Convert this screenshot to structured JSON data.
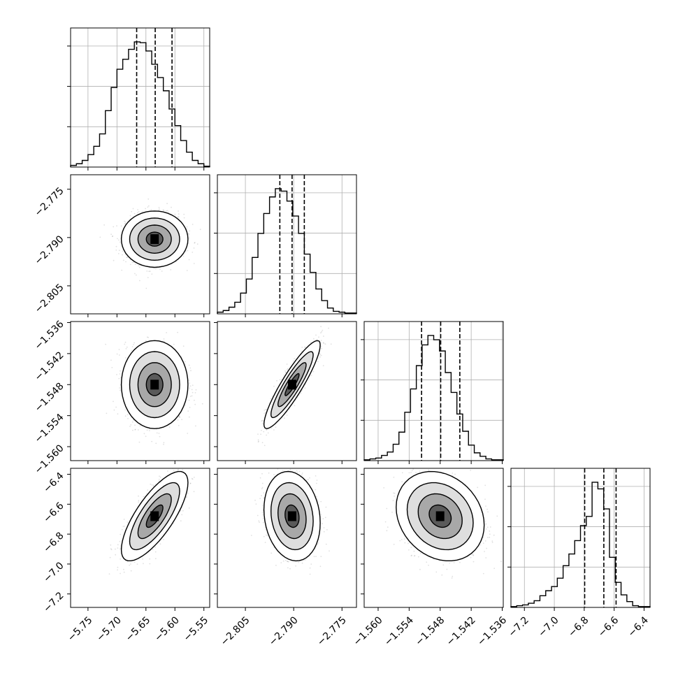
{
  "chart_data": {
    "type": "corner",
    "grid": true,
    "params": [
      {
        "range": [
          -5.78,
          -5.54
        ],
        "ticks": [
          -5.75,
          -5.7,
          -5.65,
          -5.6,
          -5.55
        ],
        "tick_labels": [
          "−5.75",
          "−5.70",
          "−5.65",
          "−5.60",
          "−5.55"
        ],
        "quantiles": [
          -5.666,
          -5.634,
          -5.605
        ],
        "mean": -5.635,
        "sd": 0.025
      },
      {
        "range": [
          -2.8137,
          -2.7705
        ],
        "ticks": [
          -2.805,
          -2.79,
          -2.775
        ],
        "tick_labels": [
          "−2.805",
          "−2.790",
          "−2.775"
        ],
        "quantiles": [
          -2.7943,
          -2.7905,
          -2.7867
        ],
        "mean": -2.7905,
        "sd": 0.0038
      },
      {
        "range": [
          -1.5627,
          -1.5358
        ],
        "ticks": [
          -1.56,
          -1.554,
          -1.548,
          -1.542,
          -1.536
        ],
        "tick_labels": [
          "−1.560",
          "−1.554",
          "−1.548",
          "−1.542",
          "−1.536"
        ],
        "quantiles": [
          -1.5516,
          -1.5479,
          -1.5442
        ],
        "mean": -1.548,
        "sd": 0.0037
      },
      {
        "range": [
          -7.29,
          -6.36
        ],
        "ticks": [
          -7.2,
          -7.0,
          -6.8,
          -6.6,
          -6.4
        ],
        "tick_labels": [
          "−7.2",
          "−7.0",
          "−6.8",
          "−6.6",
          "−6.4"
        ],
        "quantiles": [
          -6.797,
          -6.669,
          -6.587
        ],
        "mean": -6.68,
        "sd": 0.13
      }
    ],
    "correlations": {
      "1_0": 0.0,
      "2_0": 0.0,
      "2_1": 0.9,
      "3_0": 0.75,
      "3_1": -0.15,
      "3_2": -0.2
    },
    "histograms": [
      [
        2,
        4,
        8,
        15,
        25,
        40,
        68,
        96,
        118,
        130,
        142,
        151,
        150,
        140,
        124,
        108,
        92,
        70,
        50,
        32,
        18,
        8,
        4,
        1
      ],
      [
        2,
        4,
        8,
        14,
        25,
        42,
        68,
        97,
        121,
        141,
        151,
        148,
        136,
        118,
        97,
        72,
        50,
        30,
        16,
        7,
        3,
        2,
        1,
        1
      ],
      [
        1,
        2,
        3,
        6,
        10,
        19,
        33,
        56,
        83,
        110,
        134,
        145,
        140,
        127,
        102,
        79,
        54,
        34,
        18,
        9,
        5,
        2,
        1,
        1
      ],
      [
        1,
        2,
        3,
        5,
        8,
        14,
        20,
        25,
        35,
        50,
        64,
        80,
        98,
        109,
        150,
        142,
        118,
        60,
        30,
        15,
        7,
        2,
        1,
        1
      ]
    ]
  }
}
